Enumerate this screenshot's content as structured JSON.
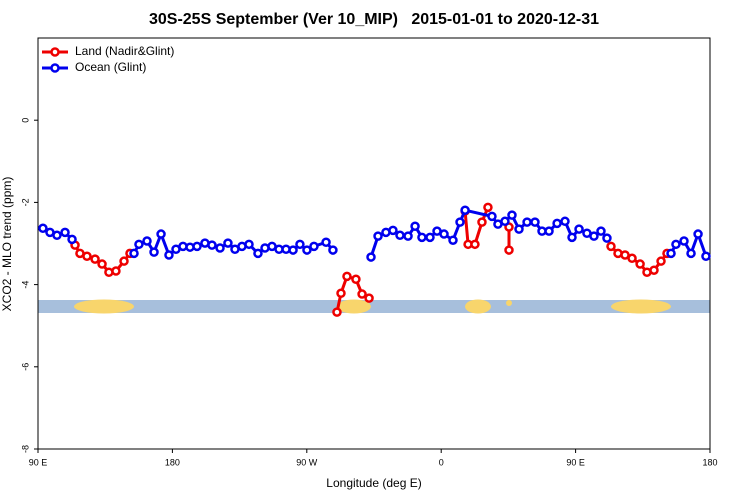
{
  "chart_data": {
    "type": "line",
    "title": "30S-25S September (Ver 10_MIP)   2015-01-01 to 2020-12-31",
    "xlabel": "Longitude (deg E)",
    "ylabel": "XCO2 - MLO trend (ppm)",
    "xlim": [
      90,
      540
    ],
    "ylim": [
      -8,
      2
    ],
    "xticks": [
      {
        "value": 90,
        "label": "90 E"
      },
      {
        "value": 180,
        "label": "180"
      },
      {
        "value": 270,
        "label": "90 W"
      },
      {
        "value": 360,
        "label": "0"
      },
      {
        "value": 450,
        "label": "90 E"
      },
      {
        "value": 540,
        "label": "180"
      }
    ],
    "yticks": [
      -8,
      -6,
      -4,
      -2,
      0
    ],
    "legend": "top-left",
    "series": [
      {
        "name": "Land (Nadir&Glint)",
        "color": "#ee0000",
        "x": [
          114.8,
          118.1,
          122.8,
          128.2,
          132.9,
          137.5,
          142.2,
          147.6,
          151.6,
          null,
          290.2,
          292.9,
          296.9,
          302.9,
          307.0,
          311.7,
          null,
          376.0,
          378.0,
          382.6,
          387.3,
          391.3,
          null,
          405.4,
          405.4,
          null,
          473.7,
          478.4,
          483.1,
          487.8,
          493.2,
          497.8,
          502.5,
          507.2,
          511.2
        ],
        "values": [
          -3.04,
          -3.24,
          -3.31,
          -3.38,
          -3.5,
          -3.7,
          -3.67,
          -3.43,
          -3.24,
          null,
          -4.67,
          -4.21,
          -3.8,
          -3.87,
          -4.23,
          -4.33,
          null,
          -2.21,
          -3.02,
          -3.02,
          -2.48,
          -2.12,
          null,
          -2.6,
          -3.16,
          null,
          -3.07,
          -3.24,
          -3.28,
          -3.36,
          -3.5,
          -3.7,
          -3.65,
          -3.43,
          -3.24
        ]
      },
      {
        "name": "Ocean (Glint)",
        "color": "#0000ee",
        "x": [
          93.3,
          98.0,
          102.7,
          108.1,
          112.8,
          null,
          154.3,
          157.6,
          163.0,
          167.7,
          172.4,
          177.7,
          182.4,
          187.1,
          191.8,
          196.5,
          201.8,
          206.5,
          211.9,
          217.2,
          221.9,
          226.6,
          231.3,
          237.3,
          242.0,
          246.7,
          251.4,
          256.1,
          260.8,
          265.4,
          270.1,
          274.8,
          282.9,
          287.5,
          null,
          313.0,
          317.7,
          323.0,
          327.7,
          332.4,
          337.8,
          342.5,
          347.1,
          352.5,
          357.2,
          361.9,
          367.9,
          372.6,
          376.0,
          394.0,
          398.0,
          402.7,
          407.4,
          412.1,
          417.5,
          422.8,
          427.5,
          432.2,
          437.6,
          442.9,
          447.6,
          452.3,
          457.6,
          462.3,
          467.0,
          471.0,
          null,
          513.9,
          517.2,
          522.6,
          527.3,
          532.0,
          537.3
        ],
        "values": [
          -2.63,
          -2.73,
          -2.8,
          -2.73,
          -2.9,
          null,
          -3.24,
          -3.02,
          -2.94,
          -3.21,
          -2.77,
          -3.28,
          -3.14,
          -3.07,
          -3.09,
          -3.07,
          -2.99,
          -3.04,
          -3.11,
          -2.99,
          -3.14,
          -3.07,
          -3.02,
          -3.24,
          -3.11,
          -3.07,
          -3.14,
          -3.14,
          -3.16,
          -3.02,
          -3.16,
          -3.07,
          -2.97,
          -3.16,
          null,
          -3.33,
          -2.82,
          -2.73,
          -2.68,
          -2.8,
          -2.82,
          -2.58,
          -2.85,
          -2.85,
          -2.7,
          -2.77,
          -2.92,
          -2.48,
          -2.19,
          -2.34,
          -2.53,
          -2.46,
          -2.31,
          -2.65,
          -2.48,
          -2.48,
          -2.7,
          -2.7,
          -2.51,
          -2.46,
          -2.85,
          -2.65,
          -2.75,
          -2.82,
          -2.7,
          -2.87,
          null,
          -3.24,
          -3.02,
          -2.94,
          -3.24,
          -2.77,
          -3.31
        ]
      }
    ]
  }
}
